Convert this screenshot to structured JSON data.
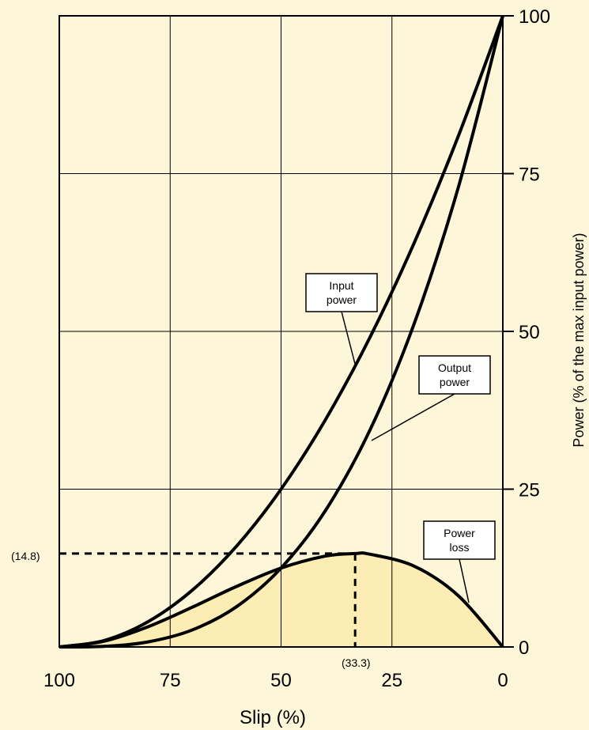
{
  "chart_data": {
    "type": "line",
    "xlabel": "Slip (%)",
    "ylabel": "Power (% of the max input power)",
    "xlim": [
      100,
      0
    ],
    "ylim": [
      0,
      100
    ],
    "x_ticks": [
      "100",
      "75",
      "50",
      "25",
      "0"
    ],
    "y_ticks": [
      "0",
      "25",
      "50",
      "75",
      "100"
    ],
    "grid": true,
    "series": [
      {
        "name": "Input power",
        "x": [
          100,
          90,
          80,
          70,
          60,
          50,
          40,
          30,
          20,
          10,
          0
        ],
        "y": [
          0,
          1,
          4,
          9,
          16,
          25,
          36,
          49,
          64,
          81,
          100
        ]
      },
      {
        "name": "Output power",
        "x": [
          100,
          90,
          80,
          70,
          60,
          50,
          40,
          30,
          20,
          10,
          0
        ],
        "y": [
          0,
          0.1,
          0.8,
          2.7,
          6.4,
          12.5,
          21.6,
          34.3,
          51.2,
          72.9,
          100
        ]
      },
      {
        "name": "Power loss",
        "x": [
          100,
          90,
          80,
          70,
          60,
          50,
          40,
          33.3,
          30,
          20,
          10,
          0
        ],
        "y": [
          0,
          0.9,
          3.2,
          6.3,
          9.6,
          12.5,
          14.4,
          14.8,
          14.7,
          12.8,
          8.1,
          0
        ]
      }
    ],
    "annotations": {
      "max_loss_value": "(14.8)",
      "max_loss_slip": "(33.3)",
      "callouts": [
        "Input\npower",
        "Output\npower",
        "Power\nloss"
      ]
    },
    "colors": {
      "background": "#fdf6d8",
      "fill": "#fbedb3",
      "line": "#000000"
    }
  },
  "labels": {
    "input_line1": "Input",
    "input_line2": "power",
    "output_line1": "Output",
    "output_line2": "power",
    "loss_line1": "Power",
    "loss_line2": "loss",
    "peak_y": "(14.8)",
    "peak_x": "(33.3)"
  }
}
